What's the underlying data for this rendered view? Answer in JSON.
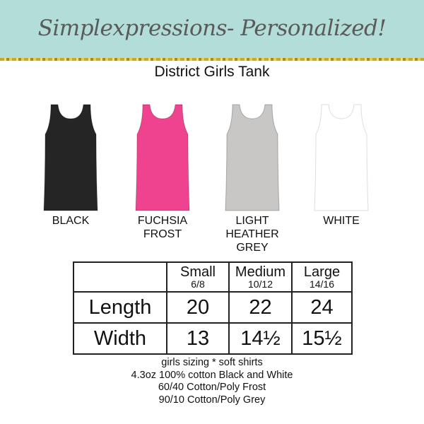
{
  "banner": {
    "brand": "Simplexpressions- Personalized!",
    "bg_color": "#b2ddd8"
  },
  "title": "District Girls Tank",
  "colors": [
    {
      "label": "BLACK",
      "hex": "#252525"
    },
    {
      "label": "FUCHSIA FROST",
      "hex": "#f0438f"
    },
    {
      "label": "LIGHT HEATHER GREY",
      "hex": "#c8c7c5"
    },
    {
      "label": "WHITE",
      "hex": "#ffffff"
    }
  ],
  "size_table": {
    "sizes": [
      {
        "name": "Small",
        "range": "6/8"
      },
      {
        "name": "Medium",
        "range": "10/12"
      },
      {
        "name": "Large",
        "range": "14/16"
      }
    ],
    "rows": [
      {
        "label": "Length",
        "values": [
          "20",
          "22",
          "24"
        ]
      },
      {
        "label": "Width",
        "values": [
          "13",
          "14½",
          "15½"
        ]
      }
    ]
  },
  "notes": [
    "girls sizing * soft shirts",
    "4.3oz  100% cotton Black and White",
    "60/40 Cotton/Poly Frost",
    "90/10 Cotton/Poly Grey"
  ]
}
